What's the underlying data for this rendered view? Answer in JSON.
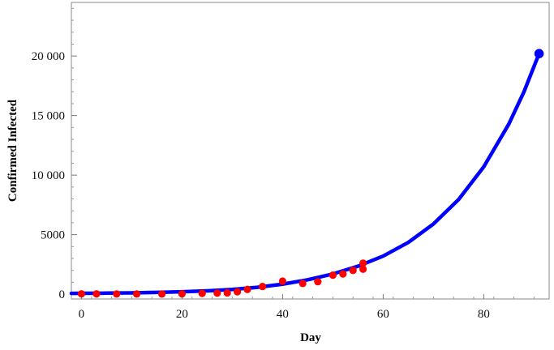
{
  "chart_data": {
    "type": "scatter",
    "xlabel": "Day",
    "ylabel": "Confirmed Infected",
    "xlim": [
      -2,
      93
    ],
    "ylim": [
      -400,
      24500
    ],
    "x_ticks": [
      0,
      20,
      40,
      60,
      80
    ],
    "y_ticks": [
      0,
      5000,
      10000,
      15000,
      20000
    ],
    "x_tick_labels": [
      "0",
      "20",
      "40",
      "60",
      "80"
    ],
    "y_tick_labels": [
      "0",
      "5000",
      "10 000",
      "15 000",
      "20 000"
    ],
    "grid": false,
    "legend": "none",
    "series": [
      {
        "type": "scatter",
        "color": "#ff0000",
        "points": [
          {
            "x": 0,
            "y": 30
          },
          {
            "x": 3,
            "y": 25
          },
          {
            "x": 7,
            "y": 20
          },
          {
            "x": 11,
            "y": 20
          },
          {
            "x": 16,
            "y": 20
          },
          {
            "x": 20,
            "y": 35
          },
          {
            "x": 24,
            "y": 70
          },
          {
            "x": 27,
            "y": 90
          },
          {
            "x": 29,
            "y": 110
          },
          {
            "x": 31,
            "y": 200
          },
          {
            "x": 33,
            "y": 400
          },
          {
            "x": 36,
            "y": 650
          },
          {
            "x": 40,
            "y": 1100
          },
          {
            "x": 44,
            "y": 900
          },
          {
            "x": 47,
            "y": 1050
          },
          {
            "x": 50,
            "y": 1600
          },
          {
            "x": 52,
            "y": 1700
          },
          {
            "x": 54,
            "y": 2000
          },
          {
            "x": 56,
            "y": 2100
          },
          {
            "x": 56,
            "y": 2600
          }
        ]
      },
      {
        "type": "line",
        "color": "#0000ff",
        "points": [
          {
            "x": -2,
            "y": 70
          },
          {
            "x": 0,
            "y": 75
          },
          {
            "x": 5,
            "y": 90
          },
          {
            "x": 10,
            "y": 110
          },
          {
            "x": 15,
            "y": 150
          },
          {
            "x": 20,
            "y": 200
          },
          {
            "x": 25,
            "y": 280
          },
          {
            "x": 30,
            "y": 400
          },
          {
            "x": 35,
            "y": 580
          },
          {
            "x": 40,
            "y": 840
          },
          {
            "x": 45,
            "y": 1210
          },
          {
            "x": 50,
            "y": 1700
          },
          {
            "x": 55,
            "y": 2350
          },
          {
            "x": 60,
            "y": 3200
          },
          {
            "x": 65,
            "y": 4350
          },
          {
            "x": 70,
            "y": 5900
          },
          {
            "x": 75,
            "y": 7950
          },
          {
            "x": 80,
            "y": 10700
          },
          {
            "x": 85,
            "y": 14300
          },
          {
            "x": 88,
            "y": 17000
          },
          {
            "x": 91,
            "y": 20200
          }
        ]
      },
      {
        "type": "scatter",
        "color": "#0000ff",
        "points": [
          {
            "x": 91,
            "y": 20200
          }
        ]
      }
    ]
  }
}
